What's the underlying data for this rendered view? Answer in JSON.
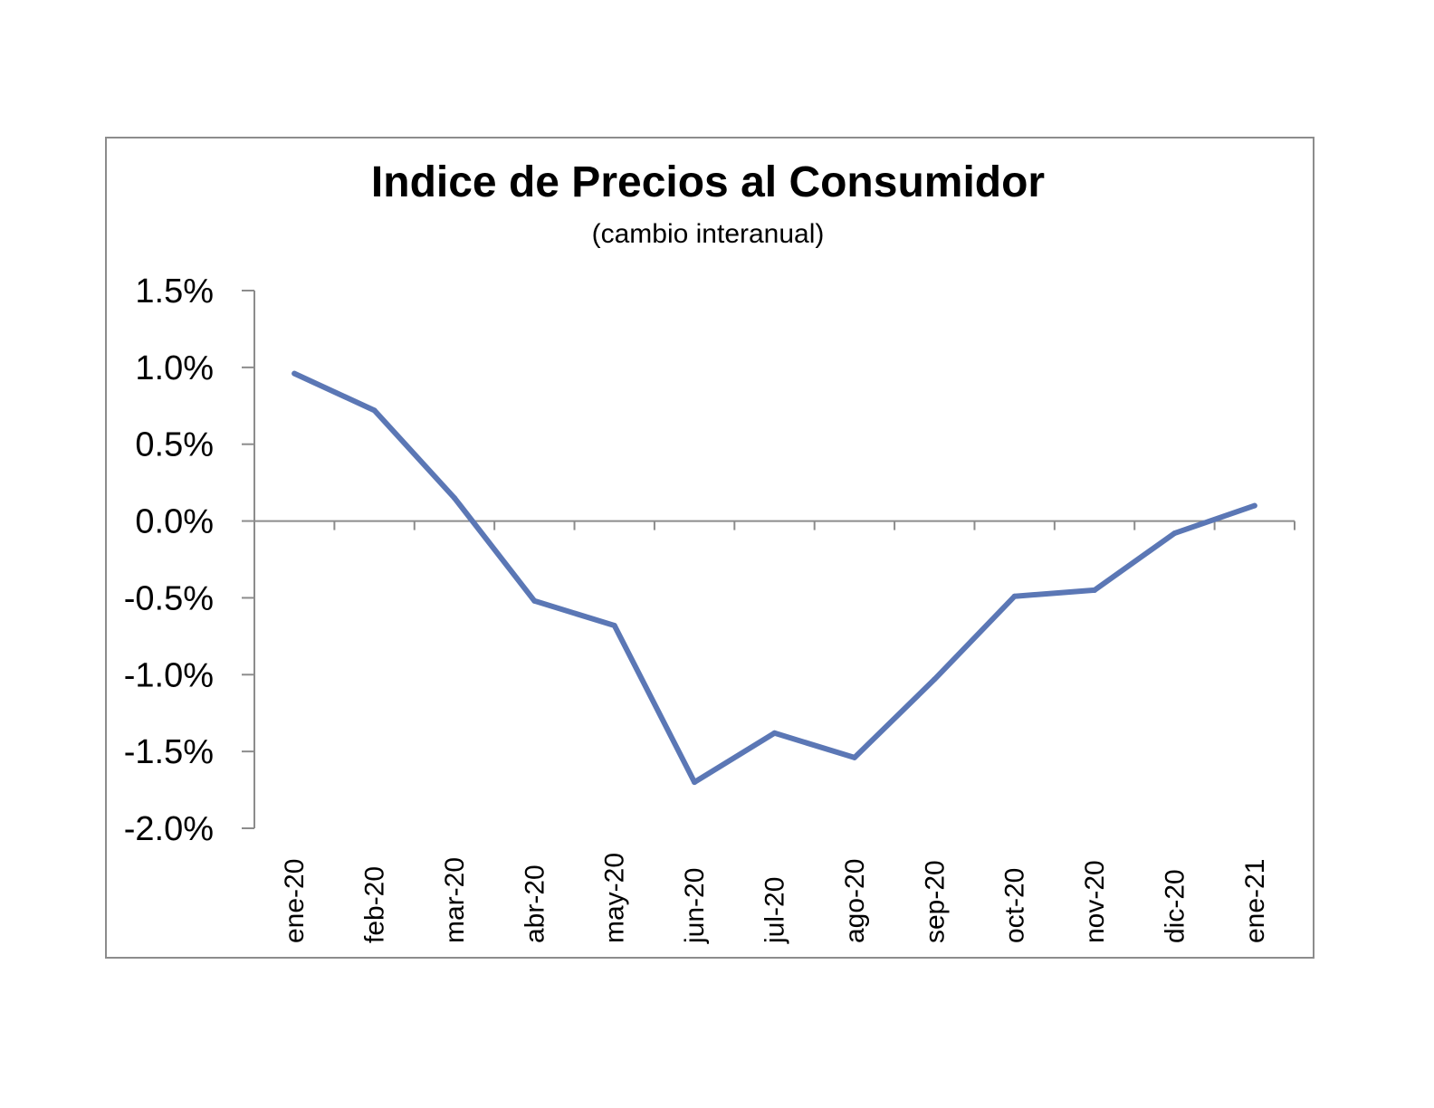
{
  "chart_data": {
    "type": "line",
    "title": "Indice de Precios al Consumidor",
    "subtitle": "(cambio interanual)",
    "xlabel": "",
    "ylabel": "",
    "categories": [
      "ene-20",
      "feb-20",
      "mar-20",
      "abr-20",
      "may-20",
      "jun-20",
      "jul-20",
      "ago-20",
      "sep-20",
      "oct-20",
      "nov-20",
      "dic-20",
      "ene-21"
    ],
    "series": [
      {
        "values": [
          0.96,
          0.72,
          0.15,
          -0.52,
          -0.68,
          -1.7,
          -1.38,
          -1.54,
          -1.03,
          -0.49,
          -0.45,
          -0.08,
          0.1
        ]
      }
    ],
    "ylim": [
      -2.0,
      1.5
    ],
    "yticks": [
      1.5,
      1.0,
      0.5,
      0.0,
      -0.5,
      -1.0,
      -1.5,
      -2.0
    ],
    "ytick_labels": [
      "1.5%",
      "1.0%",
      "0.5%",
      "0.0%",
      "-0.5%",
      "-1.0%",
      "-1.5%",
      "-2.0%"
    ],
    "grid": false,
    "legend": "none",
    "colors": {
      "line": "#5b77b5",
      "axis": "#8c8c8c",
      "frame": "#8c8c8c"
    }
  }
}
